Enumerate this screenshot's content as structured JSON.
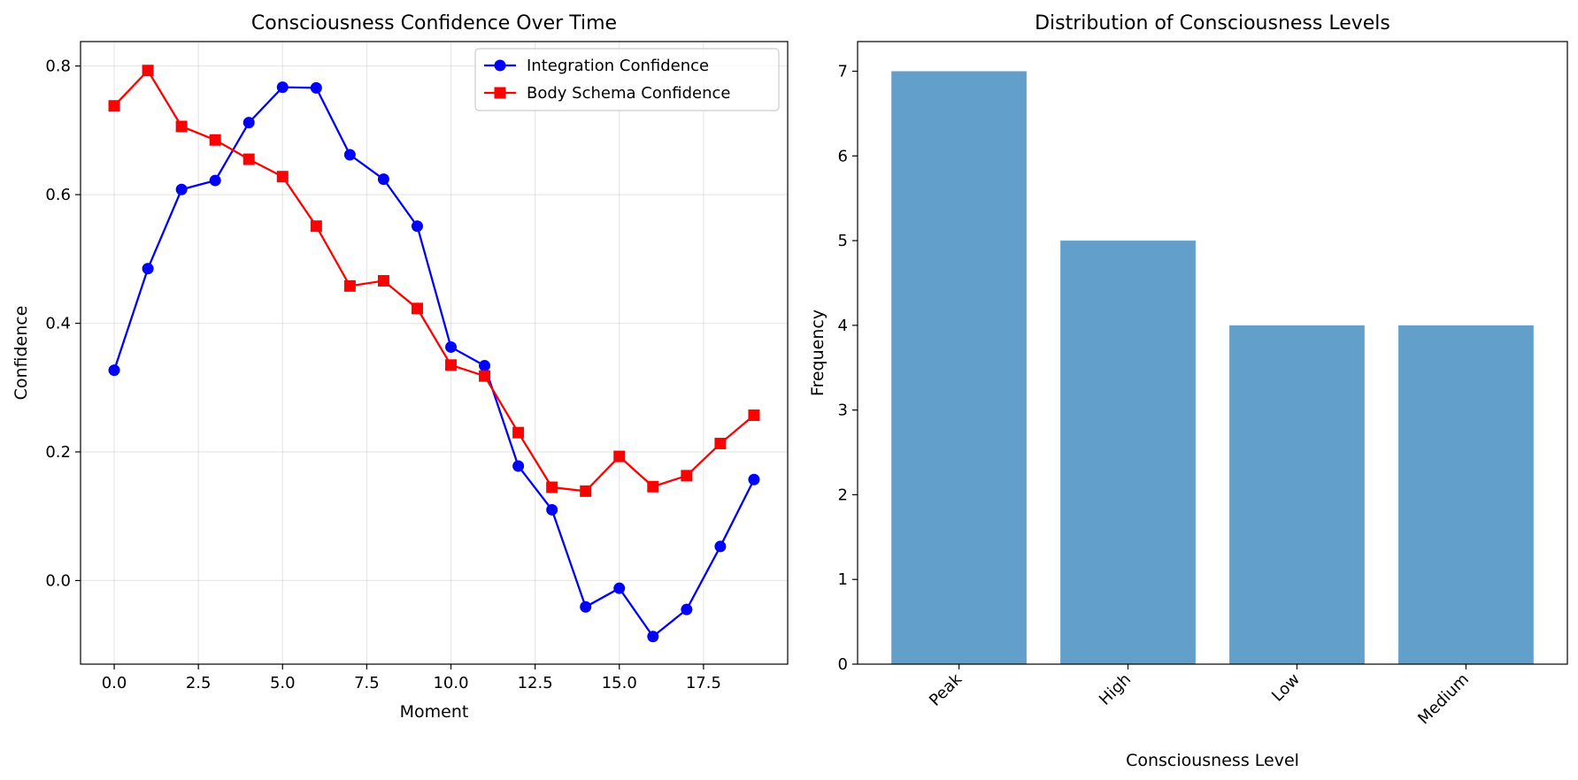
{
  "chart_data": [
    {
      "type": "line",
      "title": "Consciousness Confidence Over Time",
      "xlabel": "Moment",
      "ylabel": "Confidence",
      "xlim": [
        -1.0,
        20.0
      ],
      "ylim": [
        -0.13,
        0.838
      ],
      "xticks": [
        0.0,
        2.5,
        5.0,
        7.5,
        10.0,
        12.5,
        15.0,
        17.5
      ],
      "xtick_labels": [
        "0.0",
        "2.5",
        "5.0",
        "7.5",
        "10.0",
        "12.5",
        "15.0",
        "17.5"
      ],
      "yticks": [
        0.0,
        0.2,
        0.4,
        0.6,
        0.8
      ],
      "ytick_labels": [
        "0.0",
        "0.2",
        "0.4",
        "0.6",
        "0.8"
      ],
      "grid": true,
      "legend": "upper right",
      "x": [
        0,
        1,
        2,
        3,
        4,
        5,
        6,
        7,
        8,
        9,
        10,
        11,
        12,
        13,
        14,
        15,
        16,
        17,
        18,
        19
      ],
      "series": [
        {
          "name": "Integration Confidence",
          "color": "#0000ff",
          "marker": "circle",
          "values": [
            0.327,
            0.485,
            0.608,
            0.622,
            0.712,
            0.767,
            0.766,
            0.662,
            0.624,
            0.551,
            0.363,
            0.334,
            0.178,
            0.11,
            -0.041,
            -0.012,
            -0.087,
            -0.045,
            0.053,
            0.157
          ]
        },
        {
          "name": "Body Schema Confidence",
          "color": "#ff0000",
          "marker": "square",
          "values": [
            0.738,
            0.793,
            0.706,
            0.685,
            0.655,
            0.628,
            0.551,
            0.458,
            0.466,
            0.423,
            0.335,
            0.318,
            0.23,
            0.145,
            0.139,
            0.193,
            0.146,
            0.163,
            0.213,
            0.257
          ]
        }
      ]
    },
    {
      "type": "bar",
      "title": "Distribution of Consciousness Levels",
      "xlabel": "Consciousness Level",
      "ylabel": "Frequency",
      "categories": [
        "Peak",
        "High",
        "Low",
        "Medium"
      ],
      "values": [
        7,
        5,
        4,
        4
      ],
      "ylim": [
        0,
        7.35
      ],
      "yticks": [
        0,
        1,
        2,
        3,
        4,
        5,
        6,
        7
      ],
      "ytick_labels": [
        "0",
        "1",
        "2",
        "3",
        "4",
        "5",
        "6",
        "7"
      ],
      "bar_color": "#4c92c3",
      "bar_opacity": 0.88,
      "tick_rotation": 45,
      "grid": false
    }
  ]
}
